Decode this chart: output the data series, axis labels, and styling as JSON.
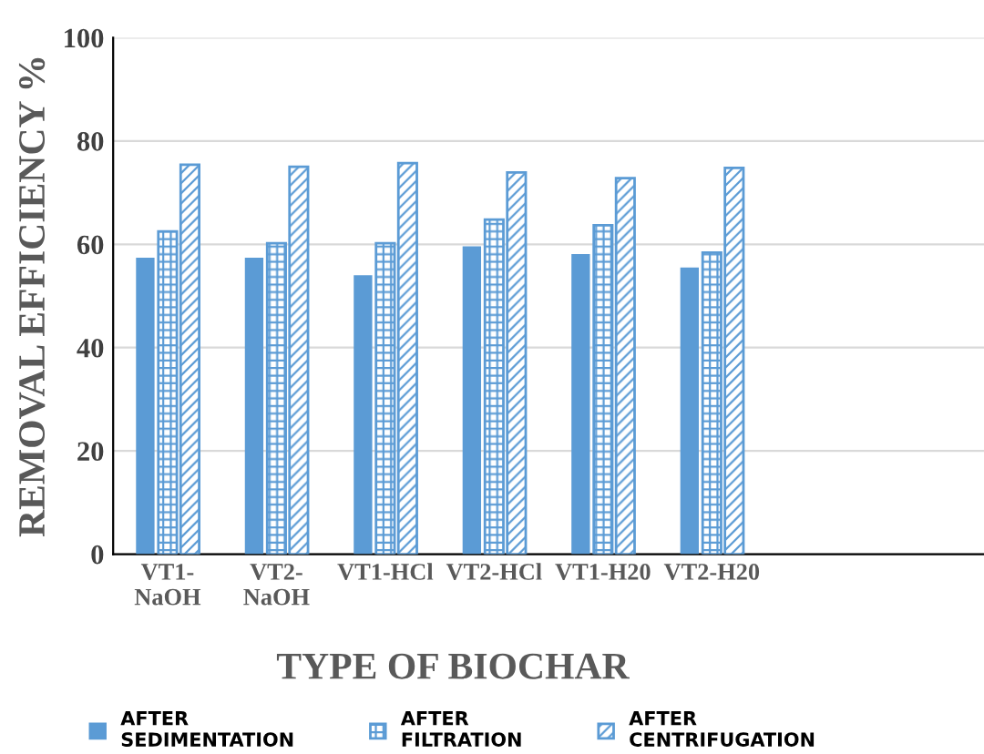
{
  "chart_data": {
    "type": "bar",
    "xlabel": "TYPE OF BIOCHAR",
    "ylabel": "REMOVAL EFFICIENCY %",
    "categories": [
      "VT1-\nNaOH",
      "VT2-\nNaOH",
      "VT1-HCl",
      "VT2-HCl",
      "VT1-H20",
      "VT2-H20",
      null,
      null
    ],
    "series": [
      {
        "name": "AFTER SEDIMENTATION",
        "color": "#5b9bd5",
        "values": [
          57.4,
          57.4,
          54.0,
          59.6,
          58.1,
          55.5,
          null,
          null
        ]
      },
      {
        "name": "AFTER FILTRATION",
        "color": "#5b9bd5",
        "values": [
          62.5,
          60.2,
          60.2,
          64.8,
          63.7,
          58.4,
          null,
          null
        ]
      },
      {
        "name": "AFTER CENTRIFUGATION",
        "color": "#5b9bd5",
        "values": [
          75.4,
          75.0,
          75.7,
          73.9,
          72.8,
          74.8,
          null,
          null
        ]
      }
    ],
    "ylim": [
      0,
      100
    ],
    "yticks": [
      0,
      20,
      40,
      60,
      80,
      100
    ],
    "grid": "y",
    "legend": "bottom"
  }
}
